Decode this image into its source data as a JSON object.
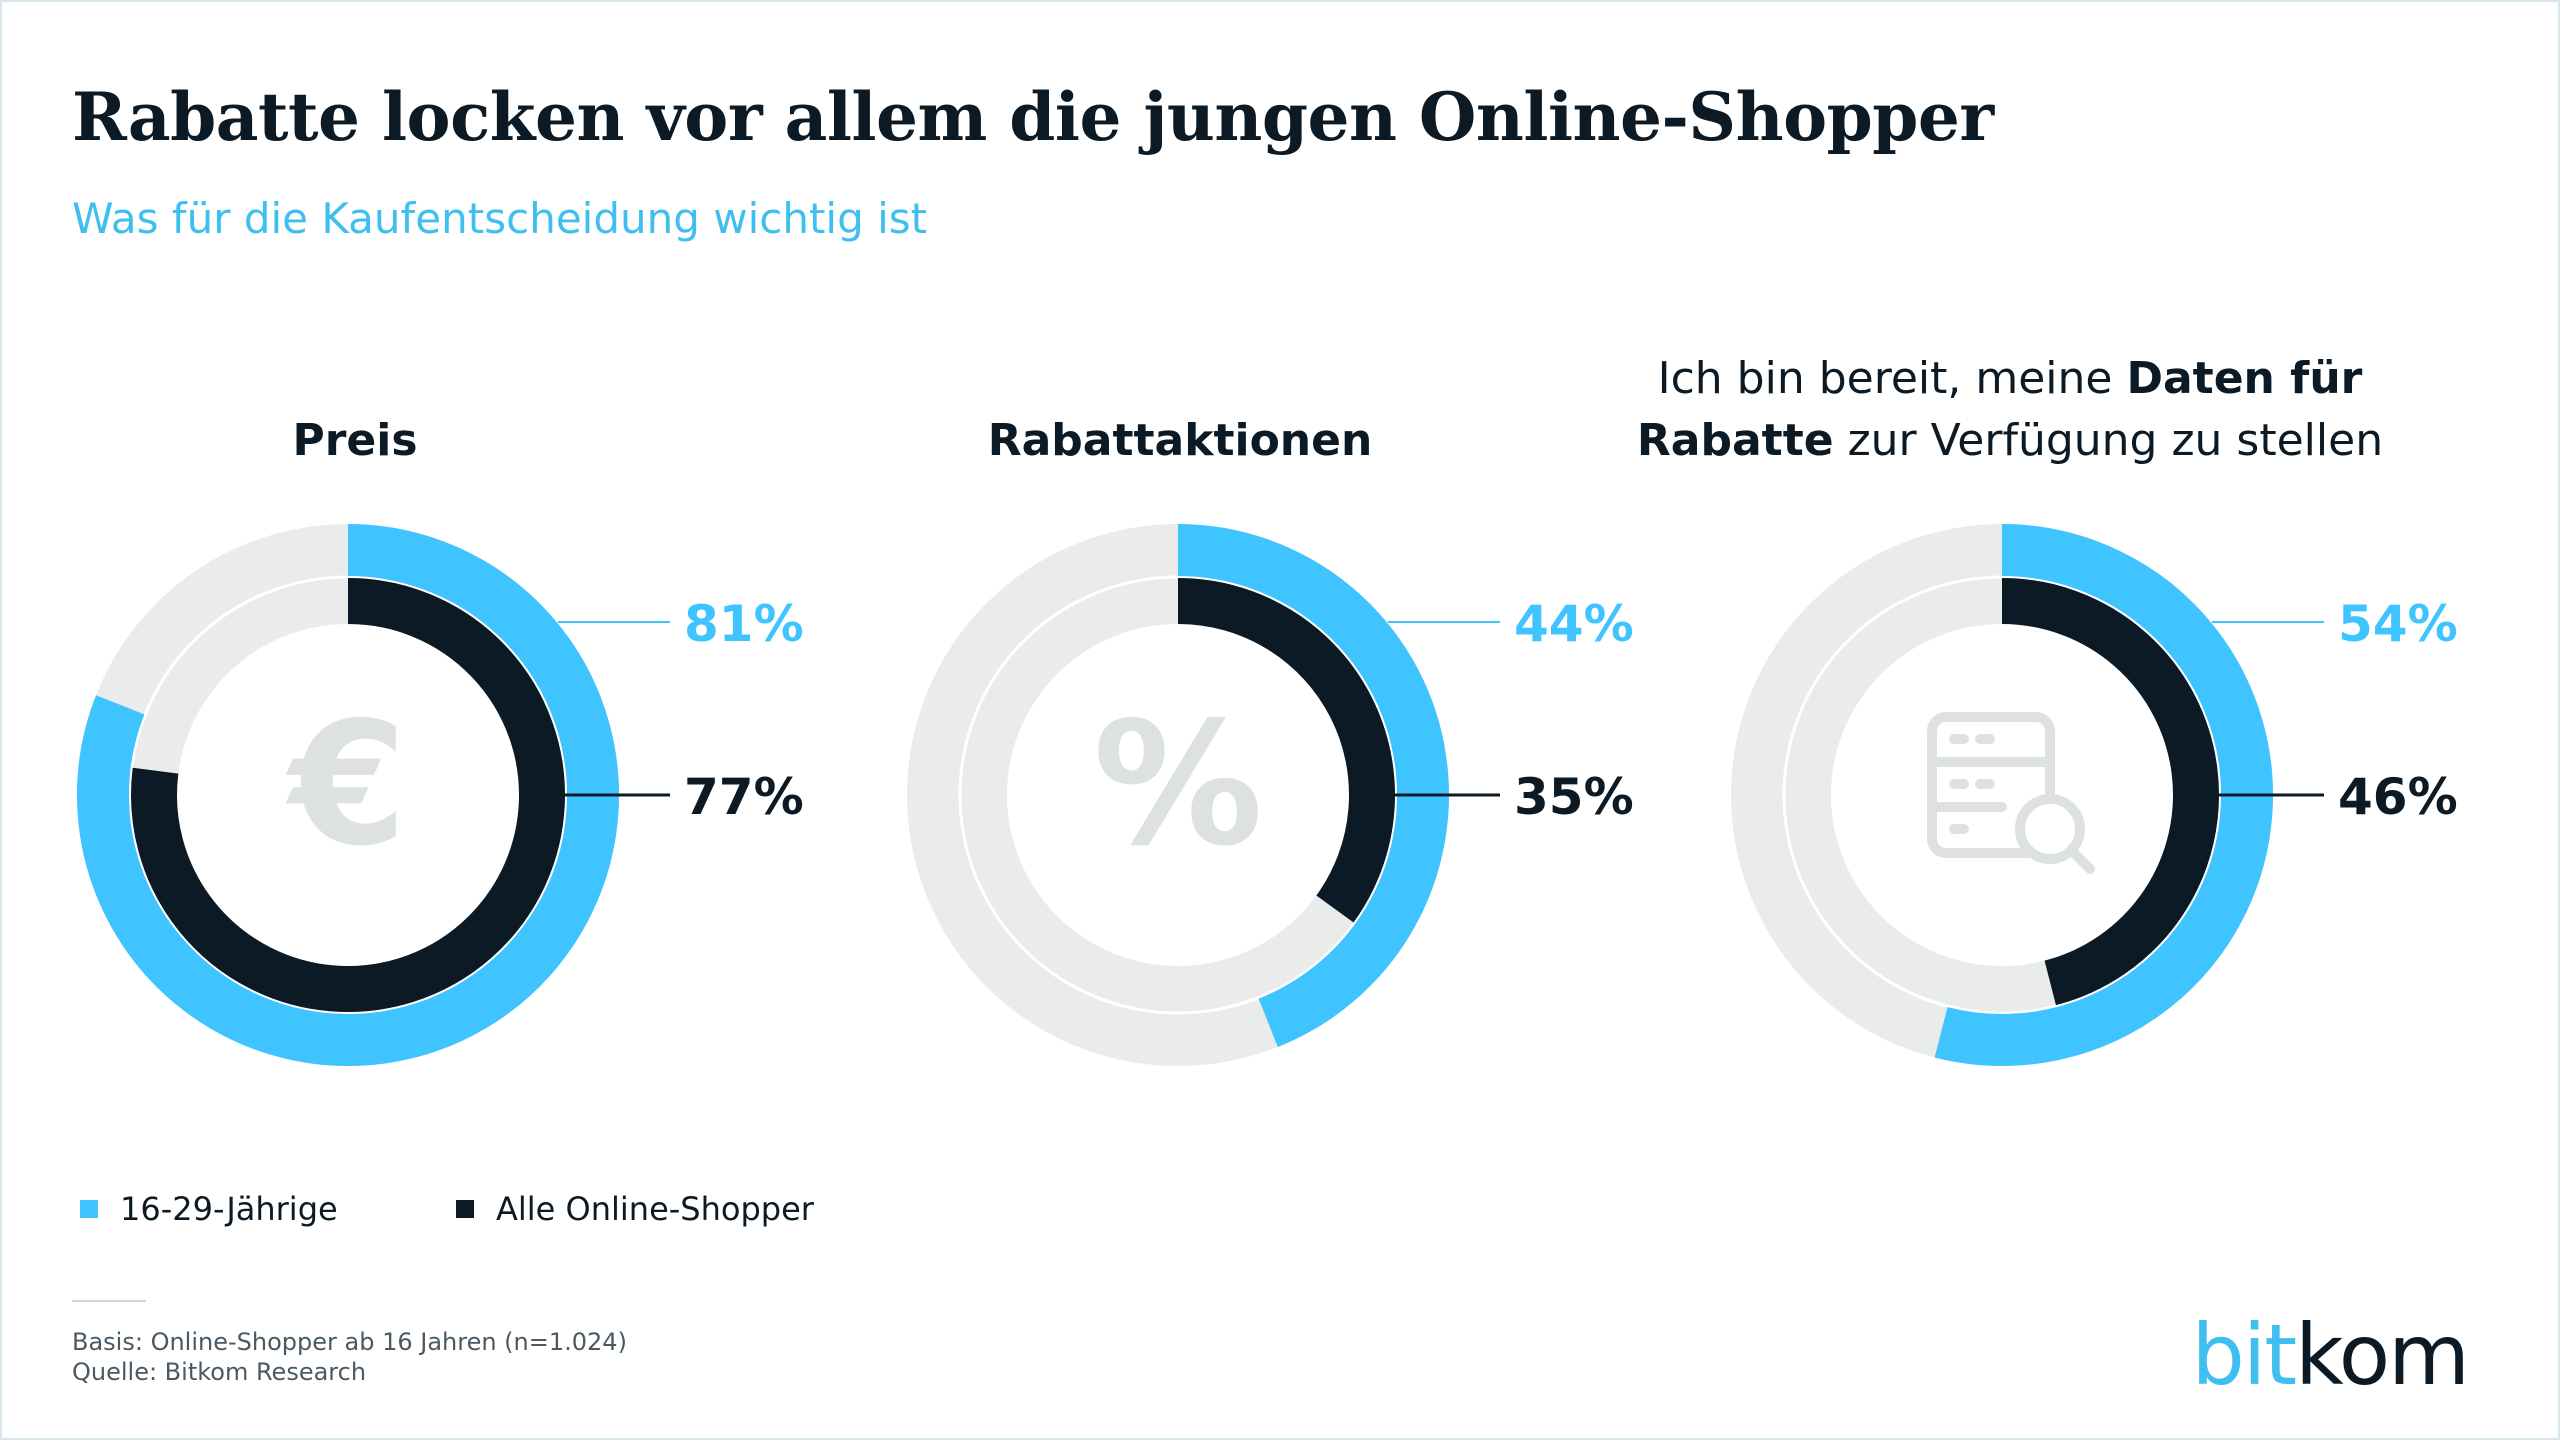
{
  "title": "Rabatte locken vor allem die jungen Online-Shopper",
  "subtitle": "Was für die Kaufentscheidung wichtig ist",
  "colors": {
    "young": "#40c4ff",
    "all": "#0b1a24",
    "track": "#e9eceb",
    "icon": "#dde2e0",
    "leader": "#40c4ff"
  },
  "chart_data": [
    {
      "type": "pie",
      "title_parts": [
        {
          "text": "Preis",
          "bold": true
        }
      ],
      "icon": "euro-icon",
      "icon_glyph": "€",
      "series": [
        {
          "name": "16-29-Jährige",
          "value": 81,
          "label": "81%"
        },
        {
          "name": "Alle Online-Shopper",
          "value": 77,
          "label": "77%"
        }
      ]
    },
    {
      "type": "pie",
      "title_parts": [
        {
          "text": "Rabattaktionen",
          "bold": true
        }
      ],
      "icon": "percent-icon",
      "icon_glyph": "%",
      "series": [
        {
          "name": "16-29-Jährige",
          "value": 44,
          "label": "44%"
        },
        {
          "name": "Alle Online-Shopper",
          "value": 35,
          "label": "35%"
        }
      ]
    },
    {
      "type": "pie",
      "title_line1": [
        {
          "text": "Ich bin bereit, meine ",
          "bold": false
        },
        {
          "text": "Daten für",
          "bold": true
        }
      ],
      "title_line2": [
        {
          "text": "Rabatte",
          "bold": true
        },
        {
          "text": " zur Verfügung zu stellen",
          "bold": false
        }
      ],
      "icon": "database-search-icon",
      "icon_glyph": "",
      "series": [
        {
          "name": "16-29-Jährige",
          "value": 54,
          "label": "54%"
        },
        {
          "name": "Alle Online-Shopper",
          "value": 46,
          "label": "46%"
        }
      ]
    }
  ],
  "legend": [
    {
      "label": "16-29-Jährige",
      "color": "#40c4ff"
    },
    {
      "label": "Alle Online-Shopper",
      "color": "#0b1a24"
    }
  ],
  "footer": {
    "basis": "Basis: Online-Shopper ab 16 Jahren (n=1.024)",
    "source": "Quelle: Bitkom Research"
  },
  "logo": {
    "part1": "bit",
    "part2": "kom"
  }
}
